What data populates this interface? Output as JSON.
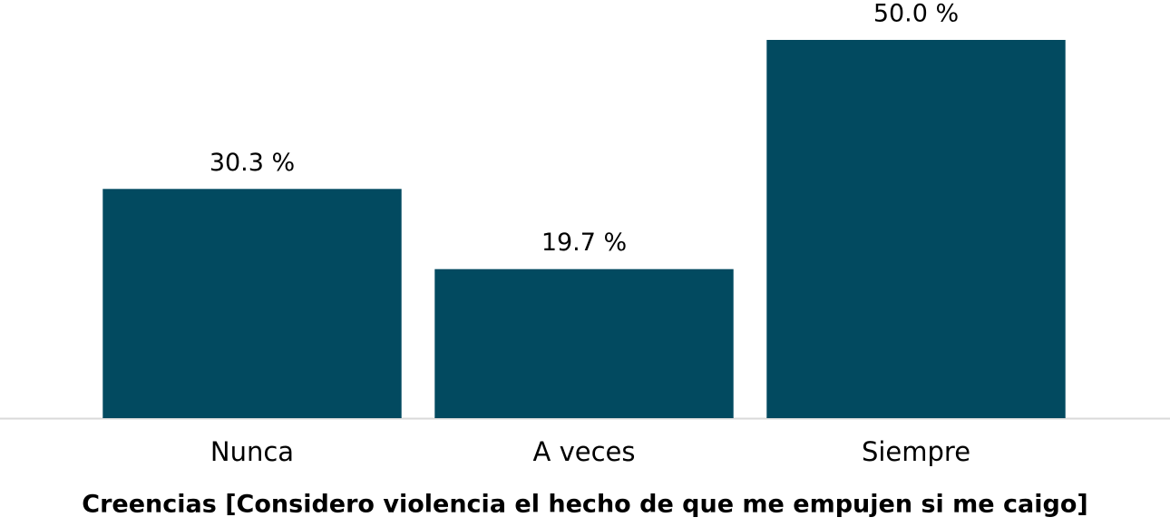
{
  "chart_data": {
    "type": "bar",
    "x_label": "Creencias [Considero violencia el hecho de que me empujen si me caigo]",
    "categories": [
      "Nunca",
      "A veces",
      "Siempre"
    ],
    "values": [
      30.3,
      19.7,
      50.0
    ],
    "value_labels": [
      "30.3 %",
      "19.7 %",
      "50.0 %"
    ],
    "color": "#024a60"
  }
}
